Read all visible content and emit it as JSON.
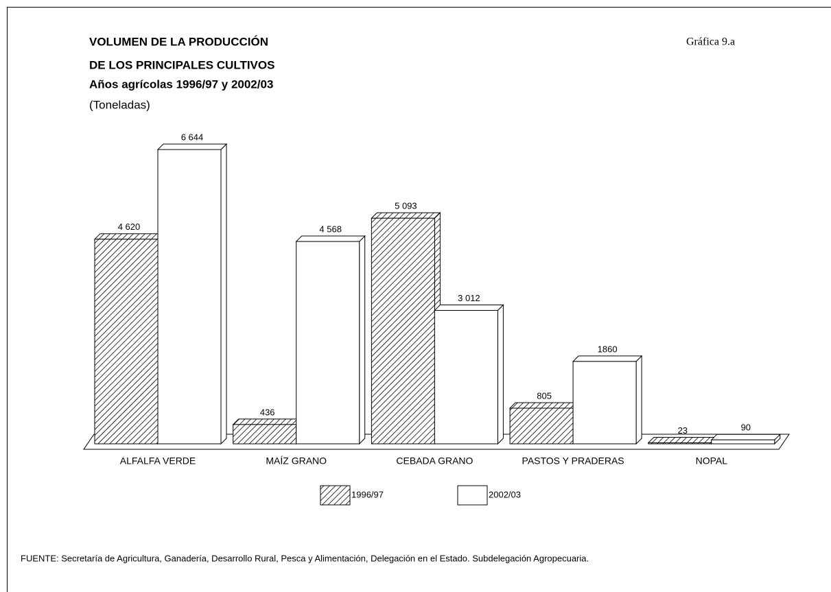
{
  "chart_data": {
    "type": "bar3d",
    "title": [
      "VOLUMEN DE LA PRODUCCIÓN",
      "DE LOS PRINCIPALES CULTIVOS"
    ],
    "subtitle": "Años agrícolas 1996/97 y 2002/03",
    "unit_note": "(Toneladas)",
    "chart_number": "Gráfica 9.a",
    "source": "FUENTE: Secretaría de Agricultura, Ganadería, Desarrollo Rural,  Pesca y Alimentación, Delegación en el Estado. Subdelegación Agropecuaria.",
    "categories": [
      "ALFALFA VERDE",
      "MAÍZ GRANO",
      "CEBADA GRANO",
      "PASTOS Y PRADERAS",
      "NOPAL"
    ],
    "series": [
      {
        "name": "1996/97",
        "color": "#ffffff",
        "pattern": "hatch",
        "values": [
          4620,
          436,
          5093,
          805,
          23
        ],
        "value_labels": [
          "4 620",
          "436",
          "5 093",
          "805",
          "23"
        ]
      },
      {
        "name": "2002/03",
        "color": "#ffffff",
        "pattern": "none",
        "values": [
          6644,
          4568,
          3012,
          1860,
          90
        ],
        "value_labels": [
          "6 644",
          "4 568",
          "3 012",
          "1860",
          "90"
        ]
      }
    ]
  }
}
